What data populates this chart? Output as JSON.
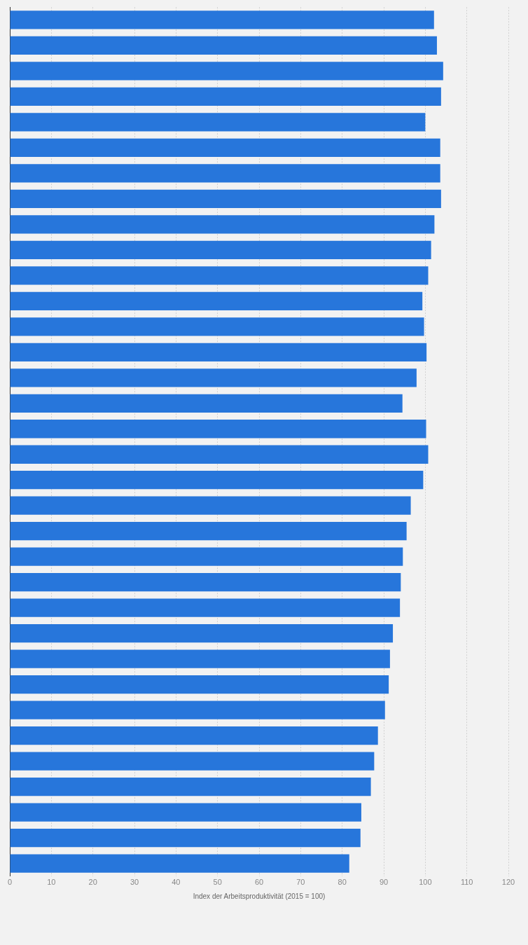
{
  "chart_data": {
    "type": "bar",
    "orientation": "horizontal",
    "xlabel": "Index der Arbeitsproduktivität (2015 = 100)",
    "categories": [
      null,
      null,
      null,
      null,
      null,
      null,
      null,
      null,
      null,
      null,
      null,
      null,
      null,
      null,
      null,
      null,
      null,
      null,
      null,
      null,
      null,
      null,
      null,
      null,
      null,
      null,
      null,
      null,
      null,
      null,
      null,
      null,
      null,
      null
    ],
    "values": [
      102.1,
      102.8,
      104.3,
      103.8,
      100,
      103.6,
      103.6,
      103.8,
      102.2,
      101.4,
      100.7,
      99.3,
      99.7,
      100.3,
      97.9,
      94.5,
      100.2,
      100.7,
      99.5,
      96.5,
      95.5,
      94.6,
      94.1,
      93.9,
      92.2,
      91.5,
      91.2,
      90.3,
      88.6,
      87.7,
      86.9,
      84.6,
      84.4,
      81.7
    ],
    "color": "#2776db",
    "xlim": [
      0,
      120
    ],
    "xticks": [
      0,
      10,
      20,
      30,
      40,
      50,
      60,
      70,
      80,
      90,
      100,
      110,
      120
    ],
    "grid": "x"
  }
}
